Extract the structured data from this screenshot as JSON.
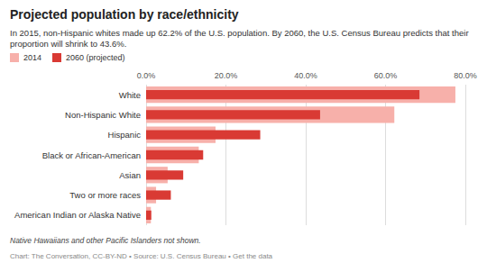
{
  "chart_data": {
    "type": "bar",
    "title": "Projected population by race/ethnicity",
    "subtitle": "In 2015, non-Hispanic whites made up 62.2% of the U.S. population. By 2060, the U.S. Census Bureau predicts that their proportion will shrink to 43.6%.",
    "orientation": "horizontal",
    "categories": [
      "White",
      "Non-Hispanic White",
      "Hispanic",
      "Black or African-American",
      "Asian",
      "Two or more races",
      "American Indian or Alaska Native"
    ],
    "series": [
      {
        "name": "2014",
        "color": "#f7b0aa",
        "values": [
          77.5,
          62.2,
          17.4,
          13.2,
          5.4,
          2.5,
          1.2
        ]
      },
      {
        "name": "2060 (projected)",
        "color": "#d93a34",
        "values": [
          68.5,
          43.6,
          28.6,
          14.3,
          9.3,
          6.2,
          1.3
        ]
      }
    ],
    "xlim": [
      0,
      80
    ],
    "xticks": [
      {
        "value": 0,
        "label": "0.0%"
      },
      {
        "value": 20,
        "label": "20.0%"
      },
      {
        "value": 40,
        "label": "40.0%"
      },
      {
        "value": 60,
        "label": "60.0%"
      },
      {
        "value": 80,
        "label": "80.0%"
      }
    ],
    "grid": true,
    "legend": "top-left",
    "footnote": "Native Hawaiians and other Pacific Islanders not shown.",
    "source": "Chart: The Conversation, CC-BY-ND • Source: U.S. Census Bureau • Get the data"
  }
}
